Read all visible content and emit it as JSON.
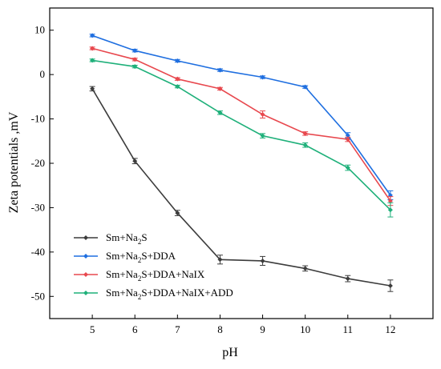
{
  "chart_data": {
    "type": "line",
    "title": "",
    "xlabel": "pH",
    "ylabel": "Zeta potentials ,mV",
    "x": [
      5,
      6,
      7,
      8,
      9,
      10,
      11,
      12
    ],
    "xlim": [
      4,
      13
    ],
    "ylim": [
      -55,
      15
    ],
    "xticks": [
      5,
      6,
      7,
      8,
      9,
      10,
      11,
      12
    ],
    "yticks": [
      10,
      0,
      -10,
      -20,
      -30,
      -40,
      -50
    ],
    "grid": false,
    "legend_position": "bottom-left",
    "series": [
      {
        "name_parts": [
          "Sm+Na",
          "2",
          "S"
        ],
        "color": "#3c3c3c",
        "values": [
          -3.2,
          -19.5,
          -31.2,
          -41.7,
          -42.0,
          -43.7,
          -46.0,
          -47.6
        ],
        "errors": [
          0.5,
          0.6,
          0.6,
          1.0,
          1.0,
          0.6,
          0.7,
          1.3
        ]
      },
      {
        "name_parts": [
          "Sm+Na",
          "2",
          "S+DDA"
        ],
        "color": "#1f6fe0",
        "values": [
          8.8,
          5.4,
          3.1,
          1.0,
          -0.6,
          -2.8,
          -13.7,
          -27.2
        ],
        "errors": [
          0.3,
          0.3,
          0.3,
          0.3,
          0.3,
          0.3,
          0.6,
          1.0
        ]
      },
      {
        "name_parts": [
          "Sm+Na",
          "2",
          "S+DDA+NaIX"
        ],
        "color": "#e8484e",
        "values": [
          5.9,
          3.4,
          -1.0,
          -3.2,
          -9.0,
          -13.3,
          -14.6,
          -28.5
        ],
        "errors": [
          0.3,
          0.3,
          0.3,
          0.3,
          0.8,
          0.4,
          0.5,
          1.0
        ]
      },
      {
        "name_parts": [
          "Sm+Na",
          "2",
          "S+DDA+NaIX+ADD"
        ],
        "color": "#1fb07a",
        "values": [
          3.2,
          1.8,
          -2.7,
          -8.6,
          -13.8,
          -15.9,
          -21.0,
          -30.5
        ],
        "errors": [
          0.3,
          0.3,
          0.3,
          0.4,
          0.5,
          0.5,
          0.6,
          1.6
        ]
      }
    ]
  }
}
